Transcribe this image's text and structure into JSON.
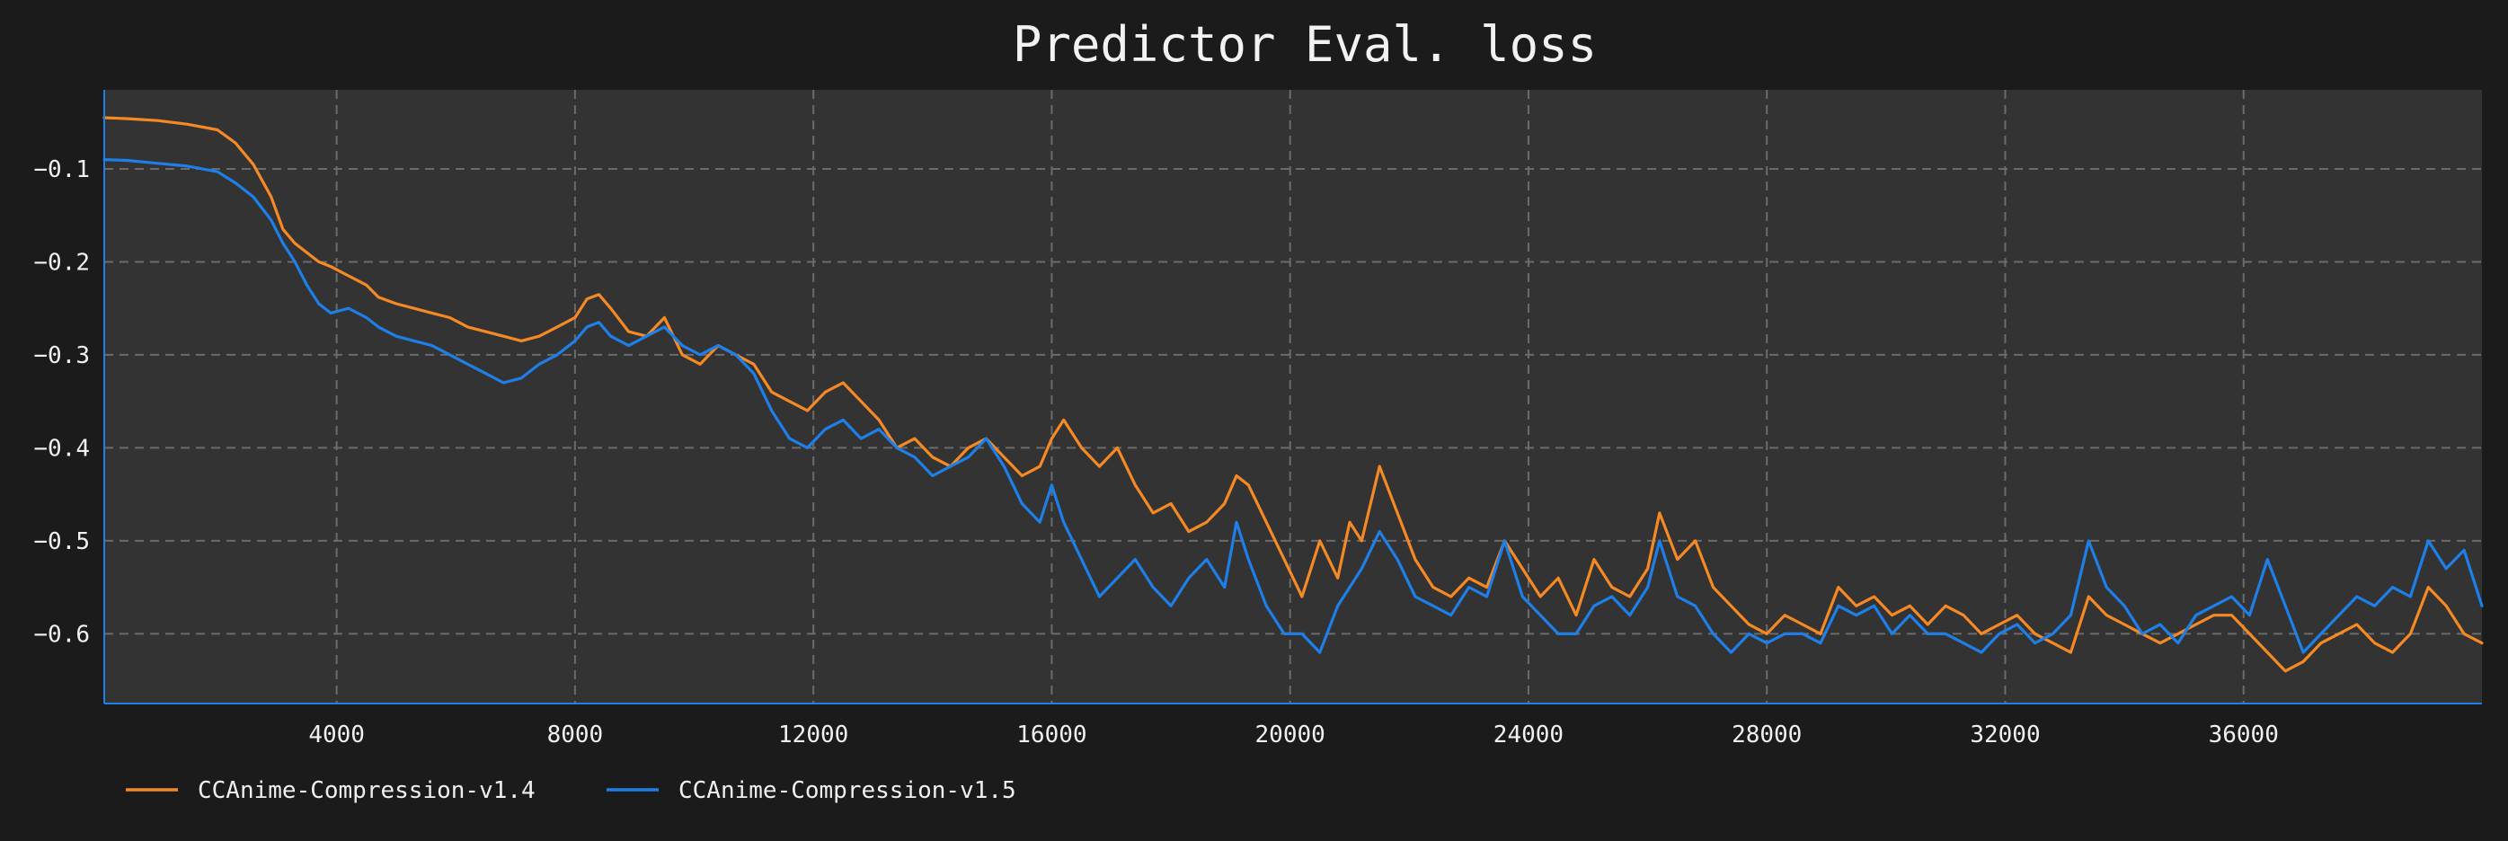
{
  "chart_data": {
    "type": "line",
    "title": "Predictor Eval. loss",
    "xlabel": "",
    "ylabel": "",
    "xlim": [
      100,
      40000
    ],
    "ylim": [
      -0.675,
      -0.015
    ],
    "x_ticks": [
      4000,
      8000,
      12000,
      16000,
      20000,
      24000,
      28000,
      32000,
      36000
    ],
    "x_tick_labels": [
      "4000",
      "8000",
      "12000",
      "16000",
      "20000",
      "24000",
      "28000",
      "32000",
      "36000"
    ],
    "y_ticks": [
      -0.1,
      -0.2,
      -0.3,
      -0.4,
      -0.5,
      -0.6
    ],
    "y_tick_labels": [
      "−0.1",
      "−0.2",
      "−0.3",
      "−0.4",
      "−0.5",
      "−0.6"
    ],
    "grid": true,
    "legend_position": "bottom-left",
    "series": [
      {
        "name": "CCAnime-Compression-v1.4",
        "color": "#f58a24",
        "x": [
          100,
          500,
          1000,
          1500,
          2000,
          2300,
          2600,
          2900,
          3100,
          3300,
          3500,
          3700,
          3900,
          4200,
          4500,
          4700,
          5000,
          5300,
          5600,
          5900,
          6200,
          6500,
          6800,
          7100,
          7400,
          7700,
          8000,
          8200,
          8400,
          8600,
          8900,
          9200,
          9500,
          9800,
          10100,
          10400,
          10700,
          11000,
          11300,
          11600,
          11900,
          12200,
          12500,
          12800,
          13100,
          13400,
          13700,
          14000,
          14300,
          14600,
          14900,
          15200,
          15500,
          15800,
          16000,
          16200,
          16500,
          16800,
          17100,
          17400,
          17700,
          18000,
          18300,
          18600,
          18900,
          19100,
          19300,
          19600,
          19900,
          20200,
          20500,
          20800,
          21000,
          21200,
          21500,
          21800,
          22100,
          22400,
          22700,
          23000,
          23300,
          23600,
          23900,
          24200,
          24500,
          24800,
          25100,
          25400,
          25700,
          26000,
          26200,
          26500,
          26800,
          27100,
          27400,
          27700,
          28000,
          28300,
          28600,
          28900,
          29200,
          29500,
          29800,
          30100,
          30400,
          30700,
          31000,
          31300,
          31600,
          31900,
          32200,
          32500,
          32800,
          33100,
          33400,
          33700,
          34000,
          34300,
          34600,
          34900,
          35200,
          35500,
          35800,
          36100,
          36400,
          36700,
          37000,
          37300,
          37600,
          37900,
          38200,
          38500,
          38800,
          39100,
          39400,
          39700,
          40000
        ],
        "values": [
          -0.045,
          -0.046,
          -0.048,
          -0.052,
          -0.058,
          -0.072,
          -0.095,
          -0.13,
          -0.165,
          -0.18,
          -0.19,
          -0.2,
          -0.205,
          -0.215,
          -0.225,
          -0.238,
          -0.245,
          -0.25,
          -0.255,
          -0.26,
          -0.27,
          -0.275,
          -0.28,
          -0.285,
          -0.28,
          -0.27,
          -0.26,
          -0.24,
          -0.235,
          -0.25,
          -0.275,
          -0.28,
          -0.26,
          -0.3,
          -0.31,
          -0.29,
          -0.3,
          -0.31,
          -0.34,
          -0.35,
          -0.36,
          -0.34,
          -0.33,
          -0.35,
          -0.37,
          -0.4,
          -0.39,
          -0.41,
          -0.42,
          -0.4,
          -0.39,
          -0.41,
          -0.43,
          -0.42,
          -0.39,
          -0.37,
          -0.4,
          -0.42,
          -0.4,
          -0.44,
          -0.47,
          -0.46,
          -0.49,
          -0.48,
          -0.46,
          -0.43,
          -0.44,
          -0.48,
          -0.52,
          -0.56,
          -0.5,
          -0.54,
          -0.48,
          -0.5,
          -0.42,
          -0.47,
          -0.52,
          -0.55,
          -0.56,
          -0.54,
          -0.55,
          -0.5,
          -0.53,
          -0.56,
          -0.54,
          -0.58,
          -0.52,
          -0.55,
          -0.56,
          -0.53,
          -0.47,
          -0.52,
          -0.5,
          -0.55,
          -0.57,
          -0.59,
          -0.6,
          -0.58,
          -0.59,
          -0.6,
          -0.55,
          -0.57,
          -0.56,
          -0.58,
          -0.57,
          -0.59,
          -0.57,
          -0.58,
          -0.6,
          -0.59,
          -0.58,
          -0.6,
          -0.61,
          -0.62,
          -0.56,
          -0.58,
          -0.59,
          -0.6,
          -0.61,
          -0.6,
          -0.59,
          -0.58,
          -0.58,
          -0.6,
          -0.62,
          -0.64,
          -0.63,
          -0.61,
          -0.6,
          -0.59,
          -0.61,
          -0.62,
          -0.6,
          -0.55,
          -0.57,
          -0.6,
          -0.61
        ]
      },
      {
        "name": "CCAnime-Compression-v1.5",
        "color": "#1f7fe8",
        "x": [
          100,
          500,
          1000,
          1500,
          2000,
          2300,
          2600,
          2900,
          3100,
          3300,
          3500,
          3700,
          3900,
          4200,
          4500,
          4700,
          5000,
          5300,
          5600,
          5900,
          6200,
          6500,
          6800,
          7100,
          7400,
          7700,
          8000,
          8200,
          8400,
          8600,
          8900,
          9200,
          9500,
          9800,
          10100,
          10400,
          10700,
          11000,
          11300,
          11600,
          11900,
          12200,
          12500,
          12800,
          13100,
          13400,
          13700,
          14000,
          14300,
          14600,
          14900,
          15200,
          15500,
          15800,
          16000,
          16200,
          16500,
          16800,
          17100,
          17400,
          17700,
          18000,
          18300,
          18600,
          18900,
          19100,
          19300,
          19600,
          19900,
          20200,
          20500,
          20800,
          21000,
          21200,
          21500,
          21800,
          22100,
          22400,
          22700,
          23000,
          23300,
          23600,
          23900,
          24200,
          24500,
          24800,
          25100,
          25400,
          25700,
          26000,
          26200,
          26500,
          26800,
          27100,
          27400,
          27700,
          28000,
          28300,
          28600,
          28900,
          29200,
          29500,
          29800,
          30100,
          30400,
          30700,
          31000,
          31300,
          31600,
          31900,
          32200,
          32500,
          32800,
          33100,
          33400,
          33700,
          34000,
          34300,
          34600,
          34900,
          35200,
          35500,
          35800,
          36100,
          36400,
          36700,
          37000,
          37300,
          37600,
          37900,
          38200,
          38500,
          38800,
          39100,
          39400,
          39700,
          40000
        ],
        "values": [
          -0.09,
          -0.091,
          -0.094,
          -0.097,
          -0.103,
          -0.115,
          -0.13,
          -0.155,
          -0.18,
          -0.2,
          -0.225,
          -0.245,
          -0.255,
          -0.25,
          -0.26,
          -0.27,
          -0.28,
          -0.285,
          -0.29,
          -0.3,
          -0.31,
          -0.32,
          -0.33,
          -0.325,
          -0.31,
          -0.3,
          -0.285,
          -0.27,
          -0.265,
          -0.28,
          -0.29,
          -0.28,
          -0.27,
          -0.29,
          -0.3,
          -0.29,
          -0.3,
          -0.32,
          -0.36,
          -0.39,
          -0.4,
          -0.38,
          -0.37,
          -0.39,
          -0.38,
          -0.4,
          -0.41,
          -0.43,
          -0.42,
          -0.41,
          -0.39,
          -0.42,
          -0.46,
          -0.48,
          -0.44,
          -0.48,
          -0.52,
          -0.56,
          -0.54,
          -0.52,
          -0.55,
          -0.57,
          -0.54,
          -0.52,
          -0.55,
          -0.48,
          -0.52,
          -0.57,
          -0.6,
          -0.6,
          -0.62,
          -0.57,
          -0.55,
          -0.53,
          -0.49,
          -0.52,
          -0.56,
          -0.57,
          -0.58,
          -0.55,
          -0.56,
          -0.5,
          -0.56,
          -0.58,
          -0.6,
          -0.6,
          -0.57,
          -0.56,
          -0.58,
          -0.55,
          -0.5,
          -0.56,
          -0.57,
          -0.6,
          -0.62,
          -0.6,
          -0.61,
          -0.6,
          -0.6,
          -0.61,
          -0.57,
          -0.58,
          -0.57,
          -0.6,
          -0.58,
          -0.6,
          -0.6,
          -0.61,
          -0.62,
          -0.6,
          -0.59,
          -0.61,
          -0.6,
          -0.58,
          -0.5,
          -0.55,
          -0.57,
          -0.6,
          -0.59,
          -0.61,
          -0.58,
          -0.57,
          -0.56,
          -0.58,
          -0.52,
          -0.57,
          -0.62,
          -0.6,
          -0.58,
          -0.56,
          -0.57,
          -0.55,
          -0.56,
          -0.5,
          -0.53,
          -0.51,
          -0.57
        ]
      }
    ]
  }
}
